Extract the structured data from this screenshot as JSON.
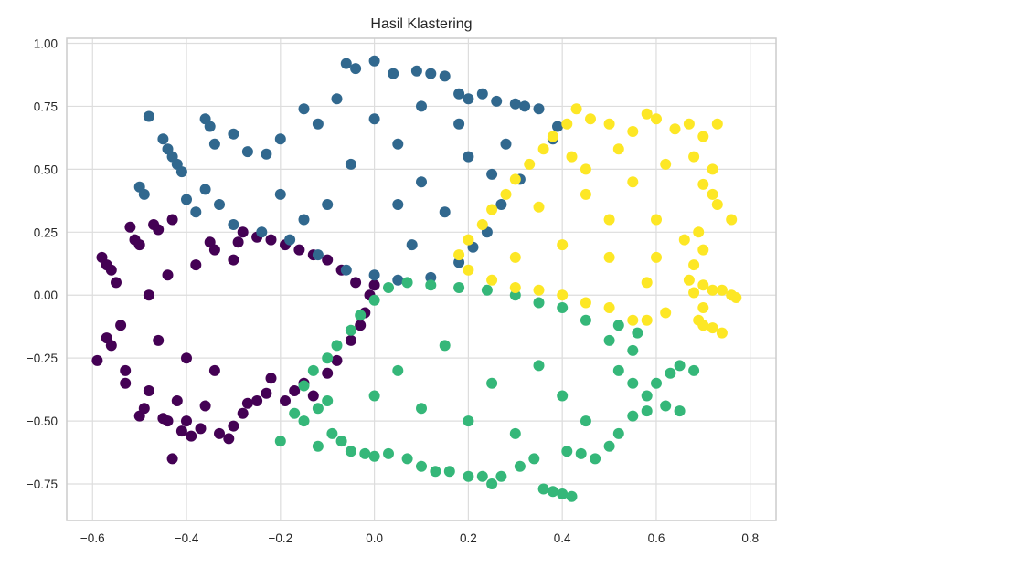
{
  "chart_data": {
    "type": "scatter",
    "title": "Hasil Klastering",
    "xlabel": "",
    "ylabel": "",
    "xlim": [
      -0.655,
      0.855
    ],
    "ylim": [
      -0.895,
      1.02
    ],
    "xticks": [
      -0.6,
      -0.4,
      -0.2,
      0.0,
      0.2,
      0.4,
      0.6,
      0.8
    ],
    "xtick_labels": [
      "−0.6",
      "−0.4",
      "−0.2",
      "0.0",
      "0.2",
      "0.4",
      "0.6",
      "0.8"
    ],
    "yticks": [
      -0.75,
      -0.5,
      -0.25,
      0.0,
      0.25,
      0.5,
      0.75,
      1.0
    ],
    "ytick_labels": [
      "−0.75",
      "−0.50",
      "−0.25",
      "0.00",
      "0.25",
      "0.50",
      "0.75",
      "1.00"
    ],
    "grid": true,
    "background": "#ffffff",
    "gridColor": "#dddddd",
    "spineColor": "#cccccc",
    "series": [
      {
        "color": "#440154",
        "points": [
          [
            -0.59,
            -0.26
          ],
          [
            -0.57,
            -0.17
          ],
          [
            -0.56,
            -0.2
          ],
          [
            -0.58,
            0.15
          ],
          [
            -0.57,
            0.12
          ],
          [
            -0.56,
            0.1
          ],
          [
            -0.55,
            0.05
          ],
          [
            -0.54,
            -0.12
          ],
          [
            -0.53,
            -0.3
          ],
          [
            -0.53,
            -0.35
          ],
          [
            -0.52,
            0.27
          ],
          [
            -0.51,
            0.22
          ],
          [
            -0.5,
            0.2
          ],
          [
            -0.5,
            -0.48
          ],
          [
            -0.49,
            -0.45
          ],
          [
            -0.48,
            -0.38
          ],
          [
            -0.47,
            0.28
          ],
          [
            -0.46,
            0.26
          ],
          [
            -0.45,
            -0.49
          ],
          [
            -0.44,
            -0.5
          ],
          [
            -0.43,
            0.3
          ],
          [
            -0.42,
            -0.42
          ],
          [
            -0.43,
            -0.65
          ],
          [
            -0.41,
            -0.54
          ],
          [
            -0.4,
            -0.5
          ],
          [
            -0.39,
            -0.56
          ],
          [
            -0.37,
            -0.53
          ],
          [
            -0.36,
            -0.44
          ],
          [
            -0.35,
            0.21
          ],
          [
            -0.34,
            0.18
          ],
          [
            -0.33,
            -0.55
          ],
          [
            -0.31,
            -0.57
          ],
          [
            -0.3,
            -0.52
          ],
          [
            -0.29,
            0.21
          ],
          [
            -0.28,
            -0.47
          ],
          [
            -0.27,
            -0.43
          ],
          [
            -0.25,
            -0.42
          ],
          [
            -0.23,
            -0.39
          ],
          [
            -0.22,
            -0.33
          ],
          [
            -0.19,
            -0.42
          ],
          [
            -0.17,
            -0.38
          ],
          [
            -0.15,
            -0.35
          ],
          [
            -0.13,
            -0.4
          ],
          [
            -0.1,
            -0.31
          ],
          [
            -0.08,
            -0.26
          ],
          [
            -0.05,
            -0.18
          ],
          [
            -0.03,
            -0.12
          ],
          [
            -0.02,
            -0.07
          ],
          [
            -0.01,
            0.0
          ],
          [
            0.0,
            0.04
          ],
          [
            -0.04,
            0.05
          ],
          [
            -0.07,
            0.1
          ],
          [
            -0.1,
            0.14
          ],
          [
            -0.13,
            0.16
          ],
          [
            -0.16,
            0.18
          ],
          [
            -0.19,
            0.2
          ],
          [
            -0.22,
            0.22
          ],
          [
            -0.25,
            0.23
          ],
          [
            -0.28,
            0.25
          ],
          [
            -0.3,
            0.14
          ],
          [
            -0.38,
            0.12
          ],
          [
            -0.44,
            0.08
          ],
          [
            -0.48,
            0.0
          ],
          [
            -0.46,
            -0.18
          ],
          [
            -0.4,
            -0.25
          ],
          [
            -0.34,
            -0.3
          ]
        ]
      },
      {
        "color": "#31688e",
        "points": [
          [
            -0.48,
            0.71
          ],
          [
            -0.45,
            0.62
          ],
          [
            -0.44,
            0.58
          ],
          [
            -0.43,
            0.55
          ],
          [
            -0.42,
            0.52
          ],
          [
            -0.41,
            0.49
          ],
          [
            -0.36,
            0.7
          ],
          [
            -0.35,
            0.67
          ],
          [
            -0.34,
            0.6
          ],
          [
            -0.3,
            0.64
          ],
          [
            -0.5,
            0.43
          ],
          [
            -0.49,
            0.4
          ],
          [
            -0.4,
            0.38
          ],
          [
            -0.38,
            0.33
          ],
          [
            -0.36,
            0.42
          ],
          [
            -0.33,
            0.36
          ],
          [
            -0.27,
            0.57
          ],
          [
            -0.23,
            0.56
          ],
          [
            -0.2,
            0.62
          ],
          [
            -0.15,
            0.74
          ],
          [
            -0.12,
            0.68
          ],
          [
            -0.06,
            0.92
          ],
          [
            -0.04,
            0.9
          ],
          [
            0.0,
            0.93
          ],
          [
            0.04,
            0.88
          ],
          [
            0.09,
            0.89
          ],
          [
            0.12,
            0.88
          ],
          [
            0.15,
            0.87
          ],
          [
            0.18,
            0.8
          ],
          [
            0.2,
            0.78
          ],
          [
            0.23,
            0.8
          ],
          [
            0.26,
            0.77
          ],
          [
            0.3,
            0.76
          ],
          [
            0.32,
            0.75
          ],
          [
            0.35,
            0.74
          ],
          [
            0.39,
            0.67
          ],
          [
            0.38,
            0.62
          ],
          [
            0.31,
            0.46
          ],
          [
            0.27,
            0.36
          ],
          [
            0.24,
            0.25
          ],
          [
            0.21,
            0.19
          ],
          [
            0.18,
            0.13
          ],
          [
            0.12,
            0.07
          ],
          [
            0.05,
            0.06
          ],
          [
            0.0,
            0.08
          ],
          [
            -0.06,
            0.1
          ],
          [
            -0.12,
            0.16
          ],
          [
            -0.18,
            0.22
          ],
          [
            -0.24,
            0.25
          ],
          [
            -0.3,
            0.28
          ],
          [
            0.1,
            0.75
          ],
          [
            0.05,
            0.6
          ],
          [
            -0.05,
            0.52
          ],
          [
            0.1,
            0.45
          ],
          [
            0.2,
            0.55
          ],
          [
            0.15,
            0.33
          ],
          [
            0.05,
            0.36
          ],
          [
            -0.1,
            0.36
          ],
          [
            -0.2,
            0.4
          ],
          [
            0.25,
            0.48
          ],
          [
            0.0,
            0.7
          ],
          [
            -0.08,
            0.78
          ],
          [
            0.18,
            0.68
          ],
          [
            0.28,
            0.6
          ],
          [
            -0.15,
            0.3
          ],
          [
            0.08,
            0.2
          ]
        ]
      },
      {
        "color": "#35b779",
        "points": [
          [
            -0.2,
            -0.58
          ],
          [
            -0.15,
            -0.5
          ],
          [
            -0.17,
            -0.47
          ],
          [
            -0.12,
            -0.45
          ],
          [
            -0.12,
            -0.6
          ],
          [
            -0.09,
            -0.55
          ],
          [
            -0.07,
            -0.58
          ],
          [
            -0.05,
            -0.62
          ],
          [
            -0.02,
            -0.63
          ],
          [
            0.0,
            -0.64
          ],
          [
            0.03,
            -0.63
          ],
          [
            0.07,
            -0.65
          ],
          [
            0.1,
            -0.68
          ],
          [
            0.13,
            -0.7
          ],
          [
            0.16,
            -0.7
          ],
          [
            0.2,
            -0.72
          ],
          [
            0.23,
            -0.72
          ],
          [
            0.25,
            -0.75
          ],
          [
            0.27,
            -0.72
          ],
          [
            0.31,
            -0.68
          ],
          [
            0.34,
            -0.65
          ],
          [
            0.38,
            -0.78
          ],
          [
            0.4,
            -0.79
          ],
          [
            0.42,
            -0.8
          ],
          [
            0.36,
            -0.77
          ],
          [
            0.41,
            -0.62
          ],
          [
            0.44,
            -0.63
          ],
          [
            0.47,
            -0.65
          ],
          [
            0.5,
            -0.6
          ],
          [
            0.52,
            -0.55
          ],
          [
            0.55,
            -0.48
          ],
          [
            0.58,
            -0.46
          ],
          [
            0.62,
            -0.44
          ],
          [
            0.65,
            -0.46
          ],
          [
            0.58,
            -0.4
          ],
          [
            0.6,
            -0.35
          ],
          [
            0.63,
            -0.31
          ],
          [
            0.65,
            -0.28
          ],
          [
            0.68,
            -0.3
          ],
          [
            0.55,
            -0.35
          ],
          [
            0.52,
            -0.3
          ],
          [
            0.55,
            -0.22
          ],
          [
            0.5,
            -0.18
          ],
          [
            0.56,
            -0.15
          ],
          [
            0.52,
            -0.12
          ],
          [
            0.45,
            -0.1
          ],
          [
            0.4,
            -0.05
          ],
          [
            0.35,
            -0.03
          ],
          [
            0.3,
            0.0
          ],
          [
            0.24,
            0.02
          ],
          [
            0.18,
            0.03
          ],
          [
            0.12,
            0.04
          ],
          [
            0.07,
            0.05
          ],
          [
            0.03,
            0.03
          ],
          [
            0.0,
            -0.02
          ],
          [
            -0.03,
            -0.08
          ],
          [
            -0.05,
            -0.14
          ],
          [
            -0.08,
            -0.2
          ],
          [
            -0.1,
            -0.25
          ],
          [
            -0.13,
            -0.3
          ],
          [
            -0.15,
            -0.36
          ],
          [
            -0.1,
            -0.42
          ],
          [
            0.05,
            -0.3
          ],
          [
            0.15,
            -0.2
          ],
          [
            0.25,
            -0.35
          ],
          [
            0.35,
            -0.28
          ],
          [
            0.2,
            -0.5
          ],
          [
            0.3,
            -0.55
          ],
          [
            0.1,
            -0.45
          ],
          [
            0.0,
            -0.4
          ],
          [
            0.4,
            -0.4
          ],
          [
            0.45,
            -0.5
          ]
        ]
      },
      {
        "color": "#fde725",
        "points": [
          [
            0.41,
            0.68
          ],
          [
            0.43,
            0.74
          ],
          [
            0.46,
            0.7
          ],
          [
            0.5,
            0.68
          ],
          [
            0.55,
            0.65
          ],
          [
            0.58,
            0.72
          ],
          [
            0.6,
            0.7
          ],
          [
            0.64,
            0.66
          ],
          [
            0.67,
            0.68
          ],
          [
            0.7,
            0.63
          ],
          [
            0.73,
            0.68
          ],
          [
            0.68,
            0.55
          ],
          [
            0.72,
            0.5
          ],
          [
            0.7,
            0.44
          ],
          [
            0.72,
            0.4
          ],
          [
            0.73,
            0.36
          ],
          [
            0.76,
            0.3
          ],
          [
            0.69,
            0.25
          ],
          [
            0.66,
            0.22
          ],
          [
            0.7,
            0.18
          ],
          [
            0.68,
            0.12
          ],
          [
            0.67,
            0.06
          ],
          [
            0.7,
            0.04
          ],
          [
            0.72,
            0.02
          ],
          [
            0.74,
            0.02
          ],
          [
            0.76,
            0.0
          ],
          [
            0.77,
            -0.01
          ],
          [
            0.68,
            0.01
          ],
          [
            0.7,
            -0.05
          ],
          [
            0.69,
            -0.1
          ],
          [
            0.7,
            -0.12
          ],
          [
            0.72,
            -0.13
          ],
          [
            0.74,
            -0.15
          ],
          [
            0.62,
            -0.07
          ],
          [
            0.58,
            -0.1
          ],
          [
            0.55,
            -0.1
          ],
          [
            0.5,
            -0.05
          ],
          [
            0.45,
            -0.03
          ],
          [
            0.4,
            0.0
          ],
          [
            0.35,
            0.02
          ],
          [
            0.3,
            0.03
          ],
          [
            0.25,
            0.06
          ],
          [
            0.2,
            0.1
          ],
          [
            0.18,
            0.16
          ],
          [
            0.2,
            0.22
          ],
          [
            0.23,
            0.28
          ],
          [
            0.25,
            0.34
          ],
          [
            0.28,
            0.4
          ],
          [
            0.3,
            0.46
          ],
          [
            0.33,
            0.52
          ],
          [
            0.36,
            0.58
          ],
          [
            0.38,
            0.63
          ],
          [
            0.45,
            0.5
          ],
          [
            0.55,
            0.45
          ],
          [
            0.5,
            0.3
          ],
          [
            0.6,
            0.3
          ],
          [
            0.4,
            0.2
          ],
          [
            0.5,
            0.15
          ],
          [
            0.6,
            0.15
          ],
          [
            0.35,
            0.35
          ],
          [
            0.45,
            0.4
          ],
          [
            0.62,
            0.52
          ],
          [
            0.52,
            0.58
          ],
          [
            0.42,
            0.55
          ],
          [
            0.58,
            0.05
          ],
          [
            0.3,
            0.15
          ]
        ]
      }
    ]
  }
}
